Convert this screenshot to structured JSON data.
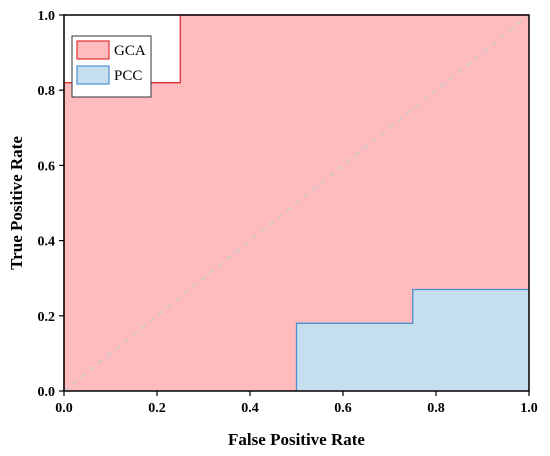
{
  "chart_data": {
    "type": "area",
    "title": "",
    "xlabel": "False Positive Rate",
    "ylabel": "True Positive Rate",
    "xlim": [
      0.0,
      1.0
    ],
    "ylim": [
      0.0,
      1.0
    ],
    "xticks": [
      "0.0",
      "0.2",
      "0.4",
      "0.6",
      "0.8",
      "1.0"
    ],
    "yticks": [
      "0.0",
      "0.2",
      "0.4",
      "0.6",
      "0.8",
      "1.0"
    ],
    "grid": false,
    "legend_position": "top-left",
    "series": [
      {
        "name": "GCA",
        "fill_color": "#ffbcbe",
        "line_color": "#e0302f",
        "x": [
          0.0,
          0.0,
          0.25,
          0.25,
          1.0
        ],
        "y": [
          0.0,
          0.82,
          0.82,
          1.0,
          1.0
        ]
      },
      {
        "name": "PCC",
        "fill_color": "#c6dfee",
        "line_color": "#4f8fd0",
        "x": [
          0.5,
          0.5,
          0.75,
          0.75,
          1.0
        ],
        "y": [
          0.0,
          0.18,
          0.18,
          0.27,
          0.27
        ]
      }
    ],
    "reference_line": {
      "x": [
        0.0,
        1.0
      ],
      "y": [
        0.0,
        1.0
      ],
      "color": "#c8c8c8",
      "style": "dashed"
    }
  }
}
